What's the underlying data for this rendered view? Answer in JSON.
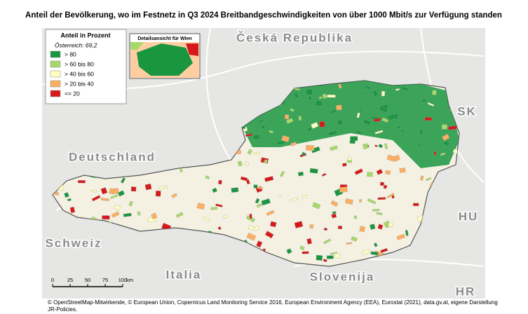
{
  "title": "Anteil der Bevölkerung, wo im Festnetz in Q3 2024 Breitbandgeschwindigkeiten von über 1000 Mbit/s zur Verfügung standen",
  "legend": {
    "title": "Anteil in Prozent",
    "subtitle": "Österreich: 69,2",
    "items": [
      {
        "label": "> 80",
        "color": "#1a9641"
      },
      {
        "label": "> 60 bis 80",
        "color": "#a6d96a"
      },
      {
        "label": "> 40 bis 60",
        "color": "#ffffbf"
      },
      {
        "label": "> 20 bis 40",
        "color": "#fdae61"
      },
      {
        "label": "<= 20",
        "color": "#d7191c"
      }
    ]
  },
  "inset": {
    "title": "Detailsansicht für Wien"
  },
  "countries": [
    "Česká Republika",
    "Deutschland",
    "Schweiz",
    "Italia",
    "Slovenija",
    "SK",
    "HU",
    "HR"
  ],
  "scale_bar": {
    "ticks": [
      0,
      25,
      50,
      75,
      100
    ],
    "unit": "km"
  },
  "footer": "© OpenStreetMap-Mitwirkende, © European Union, Copernicus Land Monitoring Service 2016, European Environment Agency (EEA), Eurostat (2021), data.gv.at, eigene Darstellung JR-Policies."
}
